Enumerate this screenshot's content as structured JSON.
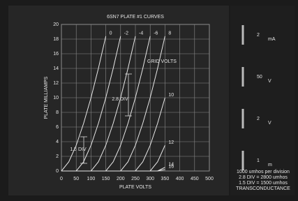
{
  "chart_data": {
    "type": "line",
    "title": "6SN7 PLATE #1 CURVES",
    "x_label": "PLATE VOLTS",
    "y_label": "PLATE MILLIAMPS",
    "x": [
      0,
      25,
      50,
      75,
      100,
      125,
      150,
      175,
      200,
      225,
      250,
      275,
      300,
      325,
      350
    ],
    "series": [
      {
        "name": "0",
        "color": "#e8e8e8",
        "values": [
          0,
          1.25,
          3.5,
          6.5,
          10,
          14,
          18.4,
          null,
          null,
          null,
          null,
          null,
          null,
          null,
          null
        ]
      },
      {
        "name": "-2",
        "color": "#e8e8e8",
        "values": [
          0,
          0,
          0,
          1.25,
          3.5,
          6.5,
          10,
          14,
          18.4,
          null,
          null,
          null,
          null,
          null,
          null
        ]
      },
      {
        "name": "-4",
        "color": "#e8e8e8",
        "values": [
          0,
          0,
          0,
          0,
          0,
          1.25,
          3.5,
          6.5,
          10,
          14,
          18.4,
          null,
          null,
          null,
          null
        ]
      },
      {
        "name": "-6",
        "color": "#e8e8e8",
        "values": [
          0,
          0,
          0,
          0,
          0,
          0,
          0,
          1.25,
          3.5,
          6.5,
          10,
          14,
          18.4,
          null,
          null
        ]
      },
      {
        "name": "8",
        "color": "#e8e8e8",
        "values": [
          0,
          0,
          0,
          0,
          0,
          0,
          0,
          0,
          0,
          1.25,
          3.5,
          6.5,
          10,
          14,
          18.4
        ]
      },
      {
        "name": "10",
        "color": "#e8e8e8",
        "values": [
          0,
          0,
          0,
          0,
          0,
          0,
          0,
          0,
          0,
          0,
          0,
          1.25,
          3.5,
          6.5,
          10
        ]
      },
      {
        "name": "12",
        "color": "#e8e8e8",
        "values": [
          0,
          0,
          0,
          0,
          0,
          0,
          0,
          0,
          0,
          0,
          0,
          0,
          0,
          1.25,
          3.5
        ]
      },
      {
        "name": "14",
        "color": "#e8e8e8",
        "values": [
          0,
          0,
          0,
          0,
          0,
          0,
          0,
          0,
          0,
          0,
          0,
          0,
          0,
          0,
          0.5
        ]
      },
      {
        "name": "16",
        "color": "#e8e8e8",
        "values": [
          0,
          0,
          0,
          0,
          0,
          0,
          0,
          0,
          0,
          0,
          0,
          0,
          0,
          0,
          0.2
        ]
      }
    ],
    "xlim": [
      0,
      500
    ],
    "xticks": [
      0,
      50,
      100,
      150,
      200,
      250,
      300,
      350,
      400,
      450,
      500
    ],
    "ylim": [
      0,
      20
    ],
    "yticks": [
      0,
      2,
      4,
      6,
      8,
      10,
      12,
      14,
      16,
      18,
      20
    ],
    "grid": true,
    "annotations": [
      "GRID VOLTS",
      "2.8 DIV",
      "1.5 DIV"
    ],
    "settings": [
      {
        "value": "2",
        "unit": "mA"
      },
      {
        "value": "50",
        "unit": "V"
      },
      {
        "value": "2",
        "unit": "V"
      },
      {
        "value": "1",
        "unit": "m"
      }
    ],
    "notes": [
      "1000 umhos per division",
      "2.8 DIV = 2800 umhos",
      "1.5 DIV = 1500 umhos",
      "TRANSCONDUCTANCE"
    ]
  }
}
